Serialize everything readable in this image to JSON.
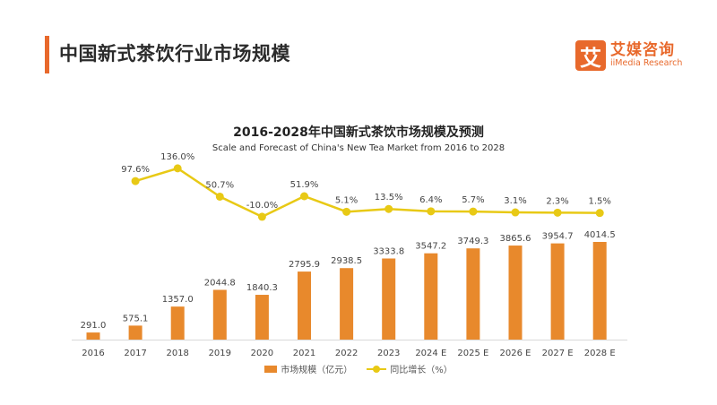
{
  "header": {
    "title": "中国新式茶饮行业市场规模",
    "logo_mark": "艾",
    "logo_cn": "艾媒咨询",
    "logo_en": "iiMedia Research"
  },
  "colors": {
    "accent": "#e8692c",
    "bar": "#e8892c",
    "line": "#e8c915"
  },
  "chart_data": {
    "type": "bar",
    "title": "2016-2028年中国新式茶饮市场规模及预测",
    "subtitle": "Scale and Forecast of China's New Tea Market from 2016 to 2028",
    "categories": [
      "2016",
      "2017",
      "2018",
      "2019",
      "2020",
      "2021",
      "2022",
      "2023",
      "2024 E",
      "2025 E",
      "2026 E",
      "2027 E",
      "2028 E"
    ],
    "series": [
      {
        "name": "市场规模（亿元）",
        "type": "bar",
        "values": [
          291.0,
          575.1,
          1357.0,
          2044.8,
          1840.3,
          2795.9,
          2938.5,
          3333.8,
          3547.2,
          3749.3,
          3865.6,
          3954.7,
          4014.5
        ],
        "labels": [
          "291.0",
          "575.1",
          "1357.0",
          "2044.8",
          "1840.3",
          "2795.9",
          "2938.5",
          "3333.8",
          "3547.2",
          "3749.3",
          "3865.6",
          "3954.7",
          "4014.5"
        ]
      },
      {
        "name": "同比增长（%）",
        "type": "line",
        "values": [
          null,
          97.6,
          136.0,
          50.7,
          -10.0,
          51.9,
          5.1,
          13.5,
          6.4,
          5.7,
          3.1,
          2.3,
          1.5
        ],
        "labels": [
          "",
          "97.6%",
          "136.0%",
          "50.7%",
          "-10.0%",
          "51.9%",
          "5.1%",
          "13.5%",
          "6.4%",
          "5.7%",
          "3.1%",
          "2.3%",
          "1.5%"
        ]
      }
    ],
    "legend_position": "bottom",
    "grid": false
  }
}
